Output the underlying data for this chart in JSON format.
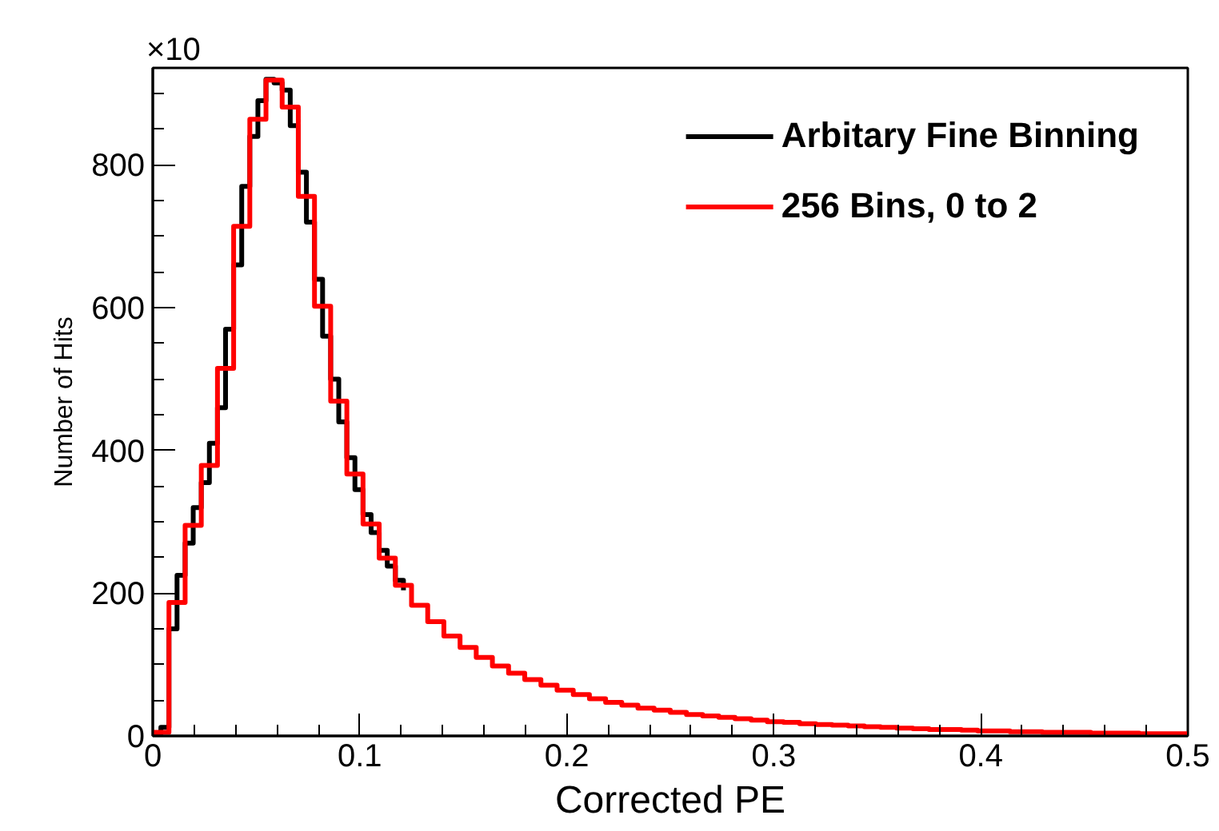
{
  "chart_data": {
    "type": "step",
    "xlabel": "Corrected PE",
    "ylabel": "Number of Hits",
    "annotations": [
      "×10"
    ],
    "xlim": [
      0,
      0.5
    ],
    "ylim": [
      0,
      936
    ],
    "xticks": [
      0,
      0.1,
      0.2,
      0.3,
      0.4,
      0.5
    ],
    "yticks": [
      0,
      200,
      400,
      600,
      800
    ],
    "grid": false,
    "legend": "top right",
    "series": [
      {
        "name": "Arbitary Fine Binning",
        "color": "#000000",
        "x": [
          0,
          0.00390625,
          0.0078125,
          0.01171875,
          0.015625,
          0.01953125,
          0.0234375,
          0.02734375,
          0.03125,
          0.03515625,
          0.0390625,
          0.04296875,
          0.046875,
          0.05078125,
          0.0546875,
          0.05859375,
          0.0625,
          0.06640625,
          0.0703125,
          0.07421875,
          0.078125,
          0.08203125,
          0.0859375,
          0.08984375,
          0.09375,
          0.09765625,
          0.1015625,
          0.10546875,
          0.109375,
          0.11328125,
          0.1171875,
          0.12109375
        ],
        "values": [
          2,
          12,
          150,
          225,
          270,
          320,
          355,
          410,
          460,
          570,
          660,
          770,
          840,
          890,
          920,
          915,
          905,
          855,
          790,
          720,
          640,
          560,
          500,
          440,
          390,
          345,
          310,
          285,
          260,
          238,
          218,
          204
        ]
      },
      {
        "name": "256 Bins, 0 to 2",
        "color": "#ff0000",
        "x": [
          0,
          0.0078125,
          0.015625,
          0.0234375,
          0.03125,
          0.0390625,
          0.046875,
          0.0546875,
          0.0625,
          0.0703125,
          0.078125,
          0.0859375,
          0.09375,
          0.1015625,
          0.109375,
          0.1171875,
          0.125,
          0.1328125,
          0.140625,
          0.1484375,
          0.15625,
          0.1640625,
          0.171875,
          0.1796875,
          0.1875,
          0.1953125,
          0.203125,
          0.2109375,
          0.21875,
          0.2265625,
          0.234375,
          0.2421875,
          0.25,
          0.2578125,
          0.265625,
          0.2734375,
          0.28125,
          0.2890625,
          0.296875,
          0.3046875,
          0.3125,
          0.3203125,
          0.328125,
          0.3359375,
          0.34375,
          0.3515625,
          0.359375,
          0.3671875,
          0.375,
          0.3828125,
          0.390625,
          0.3984375,
          0.40625,
          0.4140625,
          0.421875,
          0.4296875,
          0.4375,
          0.4453125,
          0.453125,
          0.4609375,
          0.46875,
          0.4765625,
          0.484375,
          0.4921875,
          0.5
        ],
        "values": [
          5,
          187,
          295,
          379,
          515,
          714,
          864,
          919,
          881,
          756,
          602,
          469,
          367,
          297,
          249,
          211,
          183,
          160,
          140,
          124,
          110,
          98,
          88,
          79,
          71,
          64,
          58,
          52,
          47,
          43,
          39,
          36,
          33,
          30,
          28,
          26,
          24,
          22,
          20,
          19,
          17,
          16,
          15,
          14,
          13,
          12,
          11,
          10,
          9,
          9,
          8,
          7,
          7,
          6,
          6,
          5,
          5,
          5,
          4,
          4,
          4,
          3,
          3,
          3,
          3
        ]
      }
    ]
  }
}
